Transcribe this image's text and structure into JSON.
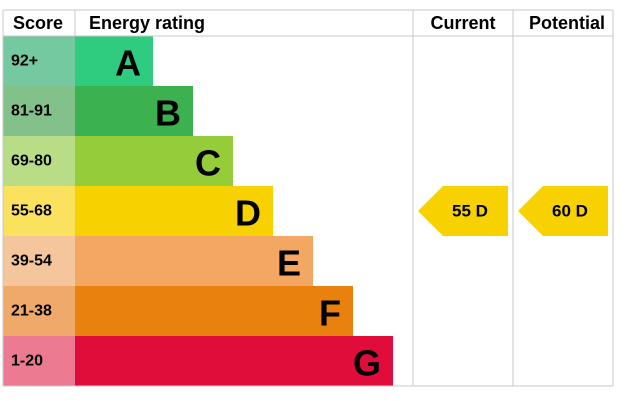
{
  "header": {
    "score": "Score",
    "rating": "Energy rating",
    "current": "Current",
    "potential": "Potential"
  },
  "bands": [
    {
      "score": "92+",
      "letter": "A"
    },
    {
      "score": "81-91",
      "letter": "B"
    },
    {
      "score": "69-80",
      "letter": "C"
    },
    {
      "score": "55-68",
      "letter": "D"
    },
    {
      "score": "39-54",
      "letter": "E"
    },
    {
      "score": "21-38",
      "letter": "F"
    },
    {
      "score": "1-20",
      "letter": "G"
    }
  ],
  "current": "55 D",
  "potential": "60 D"
}
